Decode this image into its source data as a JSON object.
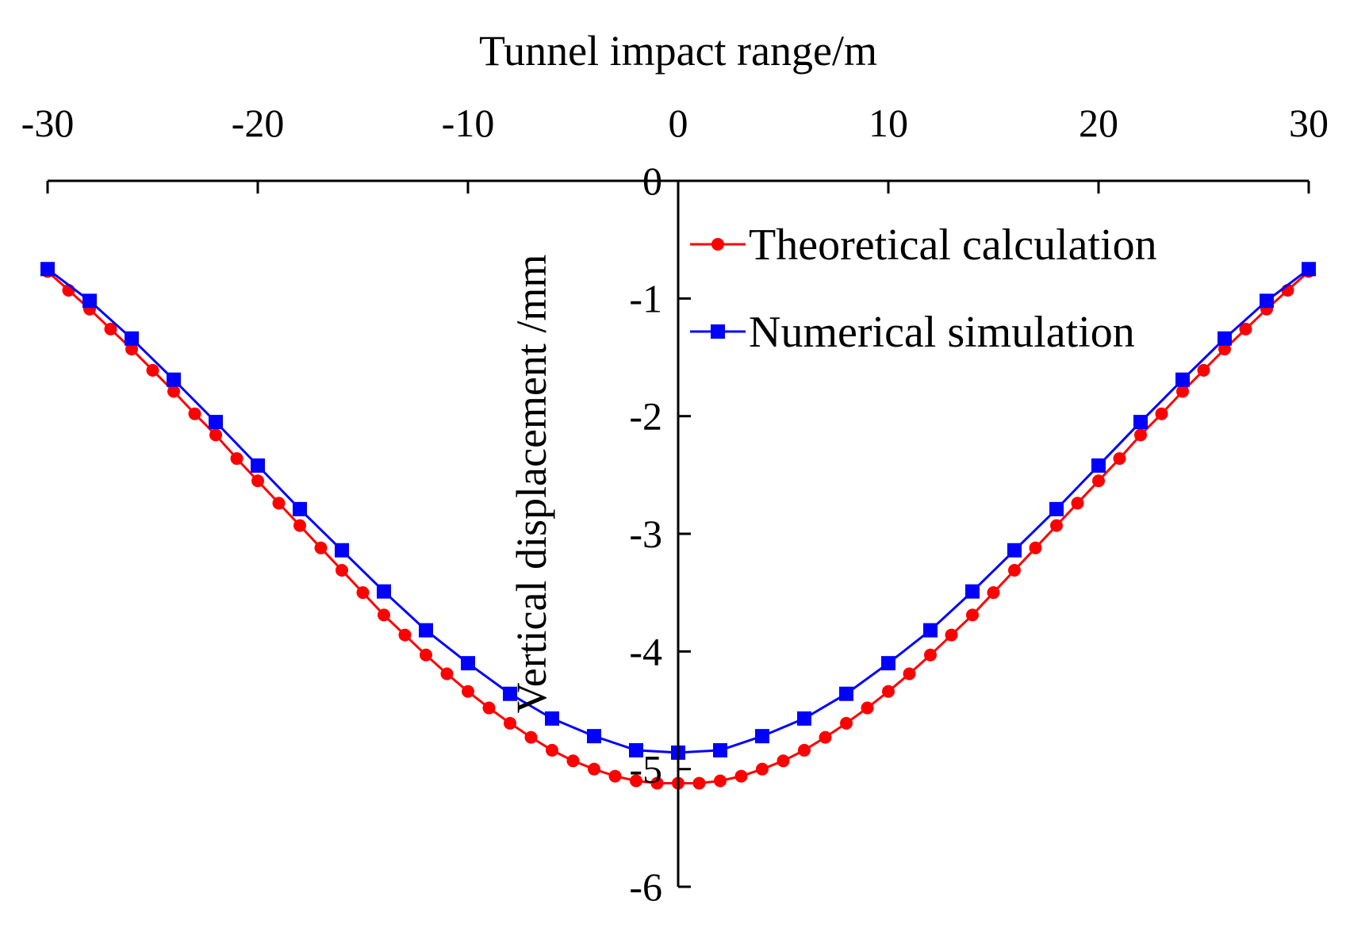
{
  "chart_data": {
    "type": "line",
    "xlabel": "Tunnel impact range/m",
    "ylabel": "Vertical displacement /mm",
    "xlim": [
      -30,
      30
    ],
    "ylim": [
      -6,
      0
    ],
    "x_ticks": [
      -30,
      -20,
      -10,
      0,
      10,
      20,
      30
    ],
    "x_tick_labels": [
      "-30",
      "-20",
      "-10",
      "0",
      "10",
      "20",
      "30"
    ],
    "y_ticks": [
      0,
      -1,
      -2,
      -3,
      -4,
      -5,
      -6
    ],
    "y_tick_labels": [
      "0",
      "-1",
      "-2",
      "-3",
      "-4",
      "-5",
      "-6"
    ],
    "x_axis_position": "top",
    "y_axis_position": "center at x=0",
    "grid": false,
    "legend": {
      "position": "top-right",
      "entries": [
        "Theoretical calculation",
        "Numerical simulation"
      ]
    },
    "series": [
      {
        "name": "Theoretical calculation",
        "color": "#ff0000",
        "marker": "circle",
        "x": [
          -30,
          -29,
          -28,
          -27,
          -26,
          -25,
          -24,
          -23,
          -22,
          -21,
          -20,
          -19,
          -18,
          -17,
          -16,
          -15,
          -14,
          -13,
          -12,
          -11,
          -10,
          -9,
          -8,
          -7,
          -6,
          -5,
          -4,
          -3,
          -2,
          -1,
          0,
          1,
          2,
          3,
          4,
          5,
          6,
          7,
          8,
          9,
          10,
          11,
          12,
          13,
          14,
          15,
          16,
          17,
          18,
          19,
          20,
          21,
          22,
          23,
          24,
          25,
          26,
          27,
          28,
          29,
          30
        ],
        "y": [
          -0.77,
          -0.93,
          -1.09,
          -1.26,
          -1.43,
          -1.61,
          -1.79,
          -1.98,
          -2.16,
          -2.36,
          -2.55,
          -2.74,
          -2.93,
          -3.12,
          -3.31,
          -3.5,
          -3.69,
          -3.86,
          -4.03,
          -4.19,
          -4.34,
          -4.48,
          -4.61,
          -4.73,
          -4.84,
          -4.93,
          -5.0,
          -5.06,
          -5.1,
          -5.12,
          -5.12,
          -5.12,
          -5.1,
          -5.06,
          -5.0,
          -4.93,
          -4.84,
          -4.73,
          -4.61,
          -4.48,
          -4.34,
          -4.19,
          -4.03,
          -3.86,
          -3.69,
          -3.5,
          -3.31,
          -3.12,
          -2.93,
          -2.74,
          -2.55,
          -2.36,
          -2.16,
          -1.98,
          -1.79,
          -1.61,
          -1.43,
          -1.26,
          -1.09,
          -0.93,
          -0.77
        ]
      },
      {
        "name": "Numerical simulation",
        "color": "#0000ff",
        "marker": "square",
        "x": [
          -30,
          -28,
          -26,
          -24,
          -22,
          -20,
          -18,
          -16,
          -14,
          -12,
          -10,
          -8,
          -6,
          -4,
          -2,
          0,
          2,
          4,
          6,
          8,
          10,
          12,
          14,
          16,
          18,
          20,
          22,
          24,
          26,
          28,
          30
        ],
        "y": [
          -0.75,
          -1.02,
          -1.34,
          -1.69,
          -2.05,
          -2.42,
          -2.79,
          -3.14,
          -3.49,
          -3.82,
          -4.1,
          -4.36,
          -4.57,
          -4.72,
          -4.84,
          -4.86,
          -4.84,
          -4.72,
          -4.57,
          -4.36,
          -4.1,
          -3.82,
          -3.49,
          -3.14,
          -2.79,
          -2.42,
          -2.05,
          -1.69,
          -1.34,
          -1.02,
          -0.75
        ]
      }
    ]
  }
}
